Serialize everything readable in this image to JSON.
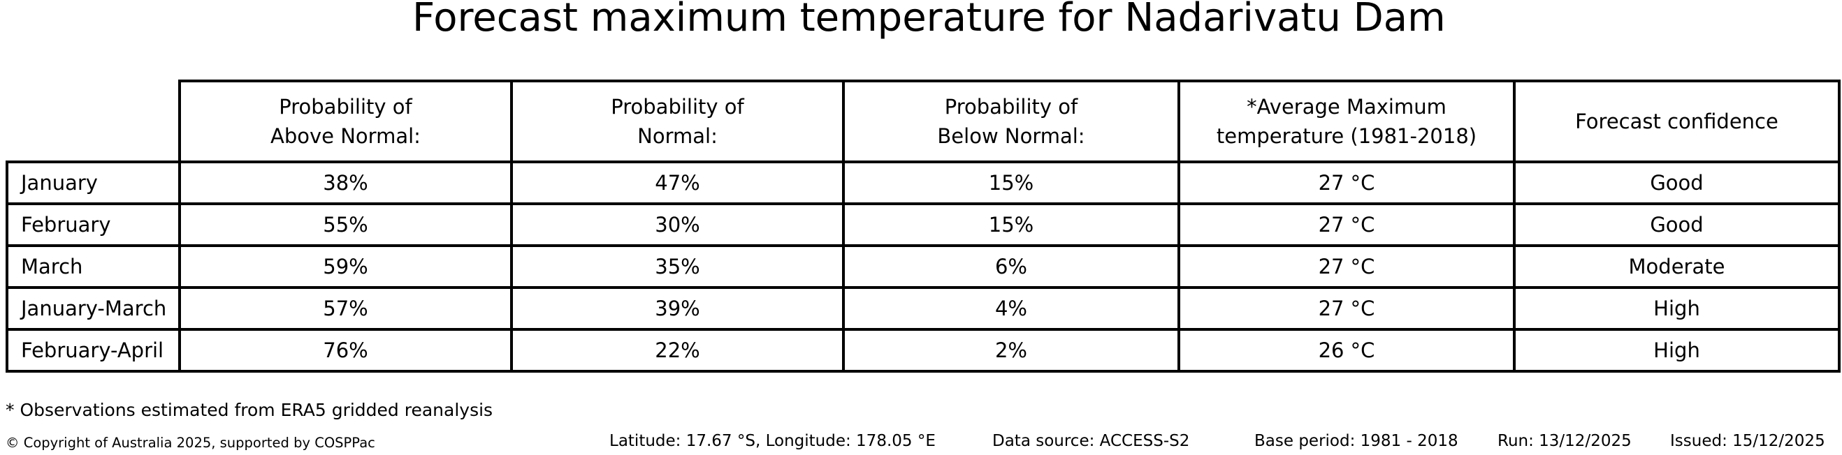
{
  "title": "Forecast maximum temperature for Nadarivatu Dam",
  "table": {
    "columns": [
      "Probability of\nAbove Normal:",
      "Probability of\nNormal:",
      "Probability of\nBelow Normal:",
      "*Average Maximum\ntemperature (1981-2018)",
      "Forecast confidence"
    ],
    "rows": [
      {
        "label": "January",
        "values": [
          "38%",
          "47%",
          "15%",
          "27 °C",
          "Good"
        ]
      },
      {
        "label": "February",
        "values": [
          "55%",
          "30%",
          "15%",
          "27 °C",
          "Good"
        ]
      },
      {
        "label": "March",
        "values": [
          "59%",
          "35%",
          "6%",
          "27 °C",
          "Moderate"
        ]
      },
      {
        "label": "January-March",
        "values": [
          "57%",
          "39%",
          "4%",
          "27 °C",
          "High"
        ]
      },
      {
        "label": "February-April",
        "values": [
          "76%",
          "22%",
          "2%",
          "26 °C",
          "High"
        ]
      }
    ]
  },
  "footnote": "* Observations estimated from ERA5 gridded reanalysis",
  "footer": {
    "copyright": "© Copyright of Australia 2025, supported by COSPPac",
    "location": "Latitude: 17.67 °S, Longitude: 178.05 °E",
    "data_source": "Data source: ACCESS-S2",
    "base_period": "Base period: 1981 - 2018",
    "run": "Run: 13/12/2025",
    "issued": "Issued: 15/12/2025"
  },
  "colors": {
    "text": "#000000",
    "border": "#000000",
    "background": "#ffffff"
  },
  "chart_data": {
    "type": "table",
    "title": "Forecast maximum temperature for Nadarivatu Dam",
    "columns": [
      "",
      "Probability of Above Normal:",
      "Probability of Normal:",
      "Probability of Below Normal:",
      "*Average Maximum temperature (1981-2018)",
      "Forecast confidence"
    ],
    "rows": [
      [
        "January",
        "38%",
        "47%",
        "15%",
        "27 °C",
        "Good"
      ],
      [
        "February",
        "55%",
        "30%",
        "15%",
        "27 °C",
        "Good"
      ],
      [
        "March",
        "59%",
        "35%",
        "6%",
        "27 °C",
        "Moderate"
      ],
      [
        "January-March",
        "57%",
        "39%",
        "4%",
        "27 °C",
        "High"
      ],
      [
        "February-April",
        "76%",
        "22%",
        "2%",
        "26 °C",
        "High"
      ]
    ],
    "probabilities_above_normal": [
      38,
      55,
      59,
      57,
      76
    ],
    "probabilities_normal": [
      47,
      30,
      35,
      39,
      22
    ],
    "probabilities_below_normal": [
      15,
      15,
      6,
      4,
      2
    ],
    "average_max_temperature_c": [
      27,
      27,
      27,
      27,
      26
    ],
    "forecast_confidence": [
      "Good",
      "Good",
      "Moderate",
      "High",
      "High"
    ],
    "footnote": "* Observations estimated from ERA5 gridded reanalysis"
  }
}
